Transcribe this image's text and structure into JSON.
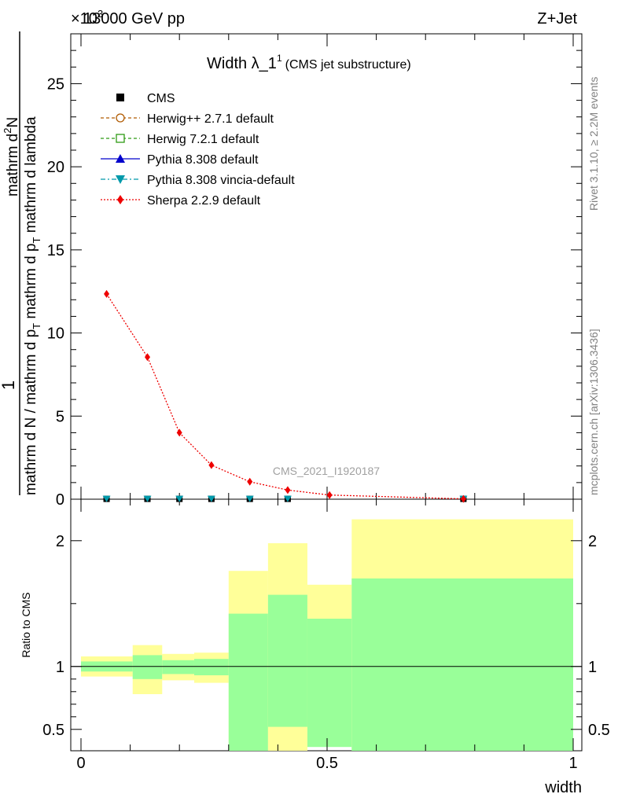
{
  "header": {
    "left": "13000 GeV pp",
    "right": "Z+Jet",
    "exponent": "×10",
    "exponent_power": "3"
  },
  "side": {
    "rivet": "Rivet 3.1.10, ≥ 2.2M events",
    "mcplots": "mcplots.cern.ch [arXiv:1306.3436]"
  },
  "analysis_id": "CMS_2021_I1920187",
  "colors": {
    "herwigpp": "#b05a00",
    "herwig7": "#2e9a14",
    "pythia": "#0000cc",
    "vincia": "#0099aa",
    "sherpa": "#ee0000",
    "band_yellow": "#ffff99",
    "band_green": "#99ff99"
  },
  "chart_data": [
    {
      "type": "line",
      "title": "Width λ_1",
      "title_sup": "1",
      "subtitle": "(CMS jet substructure)",
      "ylabel": {
        "numerator": "1",
        "denominator": "mathrm d N / mathrm d p",
        "denominator_sub": "T",
        "mid": " mathrm d p",
        "mid_sub": "T",
        "mid_tail": " mathrm d lambda",
        "top": "mathrm d",
        "top_sup": "2",
        "top_tail": "N",
        "full": "mathrm d²N / mathrm d p_T mathrm d lambda"
      },
      "xlim": [
        0,
        1
      ],
      "ylim": [
        0,
        28
      ],
      "y_scale": "×10^3",
      "yticks": [
        0,
        5,
        10,
        15,
        20,
        25
      ],
      "ytick_labels": [
        "0",
        "5",
        "10",
        "15",
        "20",
        "25"
      ],
      "legend": [
        {
          "label": "CMS",
          "marker": "square",
          "line": "none",
          "color": "#000000"
        },
        {
          "label": "Herwig++ 2.7.1 default",
          "marker": "circle-open",
          "line": "dashed",
          "color": "#b05a00"
        },
        {
          "label": "Herwig 7.2.1 default",
          "marker": "square-open",
          "line": "dashed",
          "color": "#2e9a14"
        },
        {
          "label": "Pythia 8.308 default",
          "marker": "triangle-up",
          "line": "solid",
          "color": "#0000cc"
        },
        {
          "label": "Pythia 8.308 vincia-default",
          "marker": "triangle-down",
          "line": "dashdot",
          "color": "#0099aa"
        },
        {
          "label": "Sherpa 2.2.9 default",
          "marker": "diamond",
          "line": "dotted",
          "color": "#ee0000"
        }
      ],
      "series": [
        {
          "name": "Sherpa 2.2.9 default",
          "x": [
            0.052,
            0.135,
            0.2,
            0.265,
            0.343,
            0.42,
            0.505,
            0.777
          ],
          "y": [
            12.35,
            8.55,
            4.0,
            2.05,
            1.05,
            0.55,
            0.25,
            0.02
          ]
        },
        {
          "name": "CMS and other generators (near zero)",
          "x": [
            0.052,
            0.135,
            0.2,
            0.265,
            0.343,
            0.42,
            0.777
          ],
          "y": [
            0.02,
            0.02,
            0.02,
            0.02,
            0.02,
            0.02,
            0.02
          ]
        }
      ]
    },
    {
      "type": "area",
      "ylabel": "Ratio to CMS",
      "xlabel": "width",
      "xlim": [
        0,
        1
      ],
      "ylim": [
        0.33,
        2.33
      ],
      "xticks": [
        0,
        0.5,
        1
      ],
      "xtick_labels": [
        "0",
        "0.5",
        "1"
      ],
      "yticks": [
        0.5,
        1,
        2
      ],
      "ytick_labels": [
        "0.5",
        "1",
        "2"
      ],
      "bins": [
        {
          "x0": 0.0,
          "x1": 0.105,
          "y_lo": 0.92,
          "y_hi": 1.08,
          "g_lo": 0.96,
          "g_hi": 1.04
        },
        {
          "x0": 0.105,
          "x1": 0.165,
          "y_lo": 0.78,
          "y_hi": 1.17,
          "g_lo": 0.9,
          "g_hi": 1.09
        },
        {
          "x0": 0.165,
          "x1": 0.23,
          "y_lo": 0.89,
          "y_hi": 1.1,
          "g_lo": 0.94,
          "g_hi": 1.05
        },
        {
          "x0": 0.23,
          "x1": 0.3,
          "y_lo": 0.87,
          "y_hi": 1.11,
          "g_lo": 0.93,
          "g_hi": 1.06
        },
        {
          "x0": 0.3,
          "x1": 0.38,
          "y_lo": 0.33,
          "y_hi": 1.76,
          "g_lo": 0.33,
          "g_hi": 1.42
        },
        {
          "x0": 0.38,
          "x1": 0.46,
          "y_lo": 0.33,
          "y_hi": 1.98,
          "g_lo": 0.52,
          "g_hi": 1.57
        },
        {
          "x0": 0.46,
          "x1": 0.55,
          "y_lo": 0.37,
          "y_hi": 1.65,
          "g_lo": 0.36,
          "g_hi": 1.38
        },
        {
          "x0": 0.55,
          "x1": 1.0,
          "y_lo": 0.33,
          "y_hi": 2.17,
          "g_lo": 0.33,
          "g_hi": 1.7
        }
      ]
    }
  ]
}
